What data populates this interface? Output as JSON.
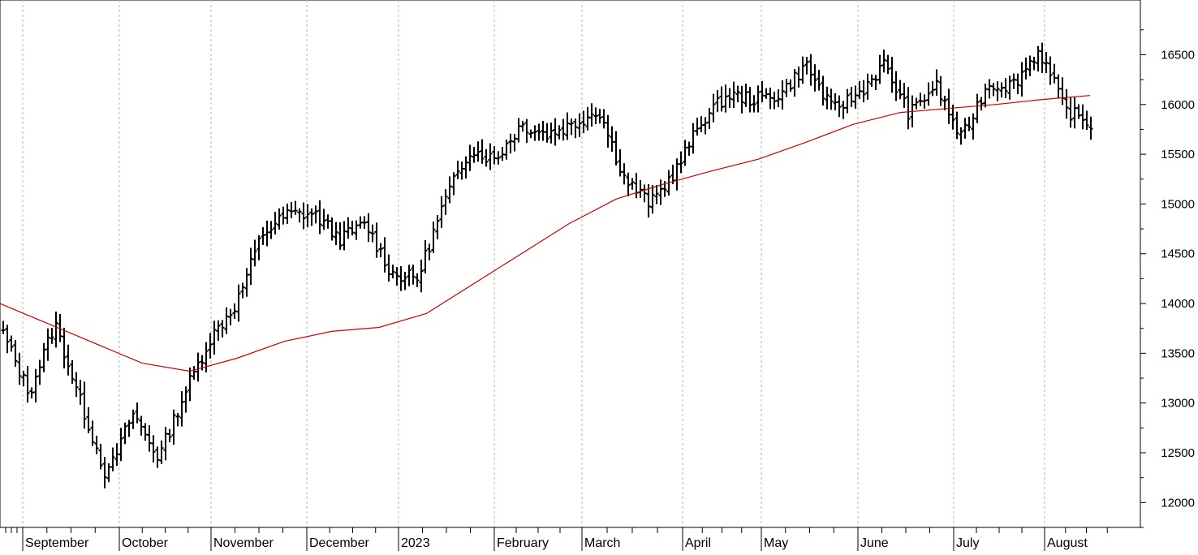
{
  "chart_data": {
    "type": "ohlc",
    "title": "",
    "xlabel": "",
    "ylabel": "",
    "ylim": [
      11750,
      17050
    ],
    "y_ticks": [
      12000,
      12500,
      13000,
      13500,
      14000,
      14500,
      15000,
      15500,
      16000,
      16500
    ],
    "y_tick_labels": [
      "12000",
      "12500",
      "13000",
      "13500",
      "14000",
      "14500",
      "15000",
      "15500",
      "16000",
      "16500"
    ],
    "y_axis_position": "right",
    "x_labels": [
      "September",
      "October",
      "November",
      "December",
      "2023",
      "February",
      "March",
      "April",
      "May",
      "June",
      "July",
      "August"
    ],
    "grid": "vertical-dashed-at-month-starts",
    "series": [
      {
        "kind": "price-bars",
        "color": "#000000",
        "key_closes": [
          {
            "date": "Aug-2022",
            "value": 13700
          },
          {
            "date": "Sep-2022",
            "value": 13100
          },
          {
            "date": "Sep-2022",
            "value": 13800
          },
          {
            "date": "Sep-2022",
            "value": 13000
          },
          {
            "date": "Sep-2022",
            "value": 12250
          },
          {
            "date": "Oct-2022",
            "value": 12900
          },
          {
            "date": "Oct-2022",
            "value": 12450
          },
          {
            "date": "Oct-2022",
            "value": 13100
          },
          {
            "date": "Oct-2022",
            "value": 13650
          },
          {
            "date": "Nov-2022",
            "value": 14000
          },
          {
            "date": "Nov-2022",
            "value": 14700
          },
          {
            "date": "Nov-2022",
            "value": 14900
          },
          {
            "date": "Dec-2022",
            "value": 14900
          },
          {
            "date": "Dec-2022",
            "value": 14650
          },
          {
            "date": "Dec-2022",
            "value": 14800
          },
          {
            "date": "Dec-2022",
            "value": 14300
          },
          {
            "date": "Jan-2023",
            "value": 14250
          },
          {
            "date": "Jan-2023",
            "value": 15000
          },
          {
            "date": "Jan-2023",
            "value": 15550
          },
          {
            "date": "Jan-2023",
            "value": 15450
          },
          {
            "date": "Feb-2023",
            "value": 15800
          },
          {
            "date": "Feb-2023",
            "value": 15700
          },
          {
            "date": "Feb-2023",
            "value": 15800
          },
          {
            "date": "Mar-2023",
            "value": 15950
          },
          {
            "date": "Mar-2023",
            "value": 15250
          },
          {
            "date": "Mar-2023",
            "value": 15000
          },
          {
            "date": "Mar-2023",
            "value": 15350
          },
          {
            "date": "Apr-2023",
            "value": 15850
          },
          {
            "date": "Apr-2023",
            "value": 16100
          },
          {
            "date": "May-2023",
            "value": 16050
          },
          {
            "date": "May-2023",
            "value": 16100
          },
          {
            "date": "May-2023",
            "value": 16400
          },
          {
            "date": "Jun-2023",
            "value": 15950
          },
          {
            "date": "Jun-2023",
            "value": 16100
          },
          {
            "date": "Jun-2023",
            "value": 16400
          },
          {
            "date": "Jun-2023",
            "value": 15900
          },
          {
            "date": "Jul-2023",
            "value": 16200
          },
          {
            "date": "Jul-2023",
            "value": 15650
          },
          {
            "date": "Jul-2023",
            "value": 16200
          },
          {
            "date": "Jul-2023",
            "value": 16200
          },
          {
            "date": "Jul-2023",
            "value": 16550
          },
          {
            "date": "Aug-2023",
            "value": 15950
          },
          {
            "date": "Aug-2023",
            "value": 15800
          }
        ]
      },
      {
        "kind": "moving-average",
        "color": "#cc0000",
        "points": [
          {
            "date": "Aug-2022",
            "value": 14000
          },
          {
            "date": "Sep-2022",
            "value": 13800
          },
          {
            "date": "Oct-2022",
            "value": 13600
          },
          {
            "date": "Oct-2022",
            "value": 13400
          },
          {
            "date": "Nov-2022",
            "value": 13320
          },
          {
            "date": "Nov-2022",
            "value": 13450
          },
          {
            "date": "Dec-2022",
            "value": 13620
          },
          {
            "date": "Dec-2022",
            "value": 13720
          },
          {
            "date": "Jan-2023",
            "value": 13760
          },
          {
            "date": "Jan-2023",
            "value": 13900
          },
          {
            "date": "Feb-2023",
            "value": 14200
          },
          {
            "date": "Feb-2023",
            "value": 14500
          },
          {
            "date": "Mar-2023",
            "value": 14800
          },
          {
            "date": "Mar-2023",
            "value": 15050
          },
          {
            "date": "Apr-2023",
            "value": 15200
          },
          {
            "date": "Apr-2023",
            "value": 15330
          },
          {
            "date": "May-2023",
            "value": 15450
          },
          {
            "date": "May-2023",
            "value": 15620
          },
          {
            "date": "Jun-2023",
            "value": 15800
          },
          {
            "date": "Jun-2023",
            "value": 15920
          },
          {
            "date": "Jul-2023",
            "value": 15960
          },
          {
            "date": "Jul-2023",
            "value": 16000
          },
          {
            "date": "Aug-2023",
            "value": 16050
          },
          {
            "date": "Aug-2023",
            "value": 16090
          }
        ]
      }
    ]
  }
}
